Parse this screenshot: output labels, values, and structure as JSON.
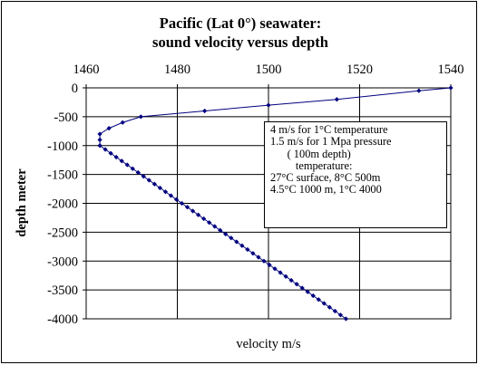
{
  "chart_data": {
    "type": "line",
    "title_lines": [
      "Pacific (Lat 0°) seawater:",
      "sound velocity versus depth"
    ],
    "xlabel": "velocity m/s",
    "ylabel": "depth meter",
    "xlim": [
      1460,
      1540
    ],
    "ylim": [
      -4000,
      0
    ],
    "x_ticks": [
      1460,
      1480,
      1500,
      1520,
      1540
    ],
    "y_ticks": [
      0,
      -500,
      -1000,
      -1500,
      -2000,
      -2500,
      -3000,
      -3500,
      -4000
    ],
    "x_axis_position": "top",
    "grid": true,
    "series": [
      {
        "color": "#000080",
        "points": [
          [
            1540,
            0
          ],
          [
            1533,
            -50
          ],
          [
            1515,
            -200
          ],
          [
            1500,
            -300
          ],
          [
            1486,
            -400
          ],
          [
            1472,
            -500
          ],
          [
            1468,
            -600
          ],
          [
            1465,
            -700
          ],
          [
            1463,
            -800
          ],
          [
            1463,
            -900
          ],
          [
            1463,
            -1000
          ]
        ]
      },
      {
        "color": "#000080",
        "points": [
          [
            1463,
            -1000
          ],
          [
            1464.2,
            -1066.7
          ],
          [
            1465.4,
            -1133.3
          ],
          [
            1466.6,
            -1200
          ],
          [
            1467.8,
            -1266.7
          ],
          [
            1469,
            -1333.3
          ],
          [
            1470.2,
            -1400
          ],
          [
            1471.4,
            -1466.7
          ],
          [
            1472.6,
            -1533.3
          ],
          [
            1473.8,
            -1600
          ],
          [
            1475,
            -1666.7
          ],
          [
            1476.2,
            -1733.3
          ],
          [
            1477.4,
            -1800
          ],
          [
            1478.6,
            -1866.7
          ],
          [
            1479.8,
            -1933.3
          ],
          [
            1481,
            -2000
          ],
          [
            1482.2,
            -2066.7
          ],
          [
            1483.4,
            -2133.3
          ],
          [
            1484.6,
            -2200
          ],
          [
            1485.8,
            -2266.7
          ],
          [
            1487,
            -2333.3
          ],
          [
            1488.2,
            -2400
          ],
          [
            1489.4,
            -2466.7
          ],
          [
            1490.6,
            -2533.3
          ],
          [
            1491.8,
            -2600
          ],
          [
            1493,
            -2666.7
          ],
          [
            1494.2,
            -2733.3
          ],
          [
            1495.4,
            -2800
          ],
          [
            1496.6,
            -2866.7
          ],
          [
            1497.8,
            -2933.3
          ],
          [
            1499,
            -3000
          ],
          [
            1500.2,
            -3066.7
          ],
          [
            1501.4,
            -3133.3
          ],
          [
            1502.6,
            -3200
          ],
          [
            1503.8,
            -3266.7
          ],
          [
            1505,
            -3333.3
          ],
          [
            1506.2,
            -3400
          ],
          [
            1507.4,
            -3466.7
          ],
          [
            1508.6,
            -3533.3
          ],
          [
            1509.8,
            -3600
          ],
          [
            1511,
            -3666.7
          ],
          [
            1512.2,
            -3733.3
          ],
          [
            1513.4,
            -3800
          ],
          [
            1514.6,
            -3866.7
          ],
          [
            1515.8,
            -3933.3
          ],
          [
            1517,
            -4000
          ]
        ]
      }
    ],
    "annotation_lines": [
      "4 m/s for 1°C temperature",
      "1.5 m/s for 1 Mpa pressure",
      "      ( 100m depth)",
      "         temperature:",
      "27°C surface, 8°C 500m",
      "4.5°C 1000 m, 1°C 4000"
    ]
  }
}
